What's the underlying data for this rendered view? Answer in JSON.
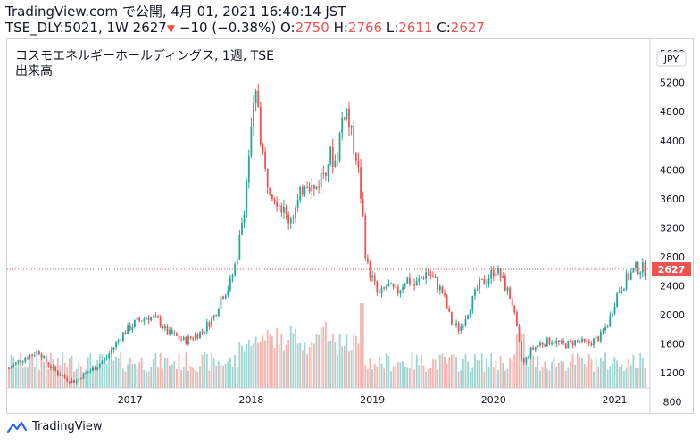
{
  "header": {
    "line1": "TradingView.com で公開, 4月 01, 2021 16:40:14 JST",
    "symbol_info": "TSE_DLY:5021, 1W 2627",
    "change_arrow": "▼",
    "change_text": "−10 (−0.38%)",
    "o_label": "O:",
    "o_value": "2750",
    "h_label": "H:",
    "h_value": "2766",
    "l_label": "L:",
    "l_value": "2611",
    "c_label": "C:",
    "c_value": "2627"
  },
  "legend": {
    "title": "コスモエネルギーホールディングス, 1週, TSE",
    "volume_label": "出来高"
  },
  "currency_badge": "JPY",
  "last_price_label": "2627",
  "footer": {
    "brand": "TradingView"
  },
  "colors": {
    "up": "#26a69a",
    "down": "#ef5350",
    "vol_up": "#9dd6d0",
    "vol_down": "#f7b2b0",
    "price_line": "#ef5350"
  },
  "chart_data": {
    "type": "candlestick",
    "x_unit": "year",
    "x_range": [
      2016.0,
      2021.35
    ],
    "y_range": [
      600,
      5700
    ],
    "y_ticks": [
      800,
      1200,
      1600,
      2000,
      2400,
      2800,
      3200,
      3600,
      4000,
      4400,
      4800,
      5200,
      5600
    ],
    "y_tick_labels": [
      "800",
      "1200",
      "1600",
      "2000",
      "2400",
      "2800",
      "3200",
      "3600",
      "4000",
      "4400",
      "4800",
      "5200",
      "5600"
    ],
    "x_ticks": [
      2017,
      2018,
      2019,
      2020,
      2021
    ],
    "x_tick_labels": [
      "2017",
      "2018",
      "2019",
      "2020",
      "2021"
    ],
    "last_price": 2627,
    "close_path": [
      [
        2016.0,
        1260
      ],
      [
        2016.08,
        1360
      ],
      [
        2016.17,
        1440
      ],
      [
        2016.25,
        1500
      ],
      [
        2016.3,
        1360
      ],
      [
        2016.4,
        1200
      ],
      [
        2016.5,
        1100
      ],
      [
        2016.55,
        1080
      ],
      [
        2016.6,
        1160
      ],
      [
        2016.7,
        1260
      ],
      [
        2016.8,
        1400
      ],
      [
        2016.88,
        1600
      ],
      [
        2016.95,
        1760
      ],
      [
        2017.05,
        1900
      ],
      [
        2017.15,
        1980
      ],
      [
        2017.25,
        1900
      ],
      [
        2017.3,
        1760
      ],
      [
        2017.38,
        1700
      ],
      [
        2017.45,
        1640
      ],
      [
        2017.52,
        1700
      ],
      [
        2017.6,
        1780
      ],
      [
        2017.7,
        2000
      ],
      [
        2017.75,
        2250
      ],
      [
        2017.82,
        2400
      ],
      [
        2017.87,
        2700
      ],
      [
        2017.9,
        3000
      ],
      [
        2017.95,
        3600
      ],
      [
        2017.98,
        4200
      ],
      [
        2018.02,
        4800
      ],
      [
        2018.05,
        5100
      ],
      [
        2018.08,
        4400
      ],
      [
        2018.12,
        3900
      ],
      [
        2018.18,
        3700
      ],
      [
        2018.25,
        3500
      ],
      [
        2018.3,
        3300
      ],
      [
        2018.38,
        3500
      ],
      [
        2018.45,
        3900
      ],
      [
        2018.52,
        3700
      ],
      [
        2018.6,
        4000
      ],
      [
        2018.65,
        4200
      ],
      [
        2018.7,
        4100
      ],
      [
        2018.75,
        4700
      ],
      [
        2018.78,
        4900
      ],
      [
        2018.82,
        4500
      ],
      [
        2018.87,
        4200
      ],
      [
        2018.92,
        3400
      ],
      [
        2018.95,
        2700
      ],
      [
        2019.0,
        2500
      ],
      [
        2019.05,
        2250
      ],
      [
        2019.12,
        2400
      ],
      [
        2019.2,
        2300
      ],
      [
        2019.28,
        2500
      ],
      [
        2019.35,
        2400
      ],
      [
        2019.45,
        2600
      ],
      [
        2019.52,
        2450
      ],
      [
        2019.58,
        2300
      ],
      [
        2019.65,
        1900
      ],
      [
        2019.72,
        1800
      ],
      [
        2019.8,
        2100
      ],
      [
        2019.88,
        2400
      ],
      [
        2019.95,
        2500
      ],
      [
        2020.02,
        2640
      ],
      [
        2020.08,
        2450
      ],
      [
        2020.15,
        2200
      ],
      [
        2020.2,
        1700
      ],
      [
        2020.24,
        1300
      ],
      [
        2020.3,
        1500
      ],
      [
        2020.38,
        1600
      ],
      [
        2020.48,
        1650
      ],
      [
        2020.58,
        1580
      ],
      [
        2020.68,
        1640
      ],
      [
        2020.78,
        1600
      ],
      [
        2020.88,
        1700
      ],
      [
        2020.95,
        1900
      ],
      [
        2021.02,
        2300
      ],
      [
        2021.1,
        2500
      ],
      [
        2021.18,
        2650
      ],
      [
        2021.25,
        2627
      ]
    ]
  }
}
